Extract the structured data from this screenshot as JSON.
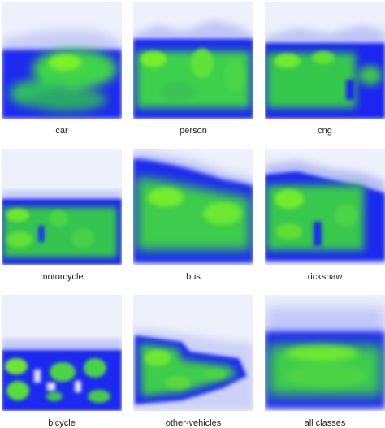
{
  "colors": {
    "background": "#eef0fb",
    "low": "#0000ff",
    "high": "#55ee22"
  },
  "panels": [
    {
      "label": "car"
    },
    {
      "label": "person"
    },
    {
      "label": "cng"
    },
    {
      "label": "motorcycle"
    },
    {
      "label": "bus"
    },
    {
      "label": "rickshaw"
    },
    {
      "label": "bicycle"
    },
    {
      "label": "other-vehicles"
    },
    {
      "label": "all classes"
    }
  ]
}
